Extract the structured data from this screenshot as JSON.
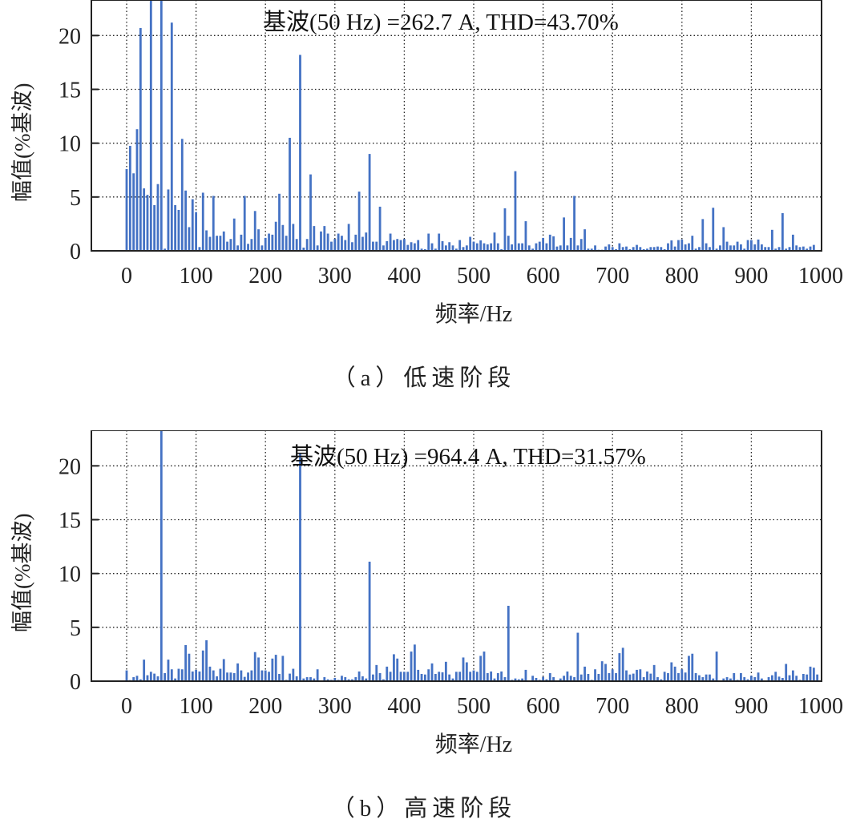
{
  "colors": {
    "bar": "#4472C4",
    "axis": "#222222",
    "grid": "#222222"
  },
  "chart_data": [
    {
      "type": "bar",
      "id": "a",
      "caption": "（a）低速阶段",
      "annotation": "基波(50 Hz) =262.7 A, THD=43.70%",
      "xlabel": "频率/Hz",
      "ylabel": "幅值(%基波)",
      "xlim": [
        -50,
        1000
      ],
      "ylim": [
        0,
        23.3
      ],
      "xticks": [
        0,
        100,
        200,
        300,
        400,
        500,
        600,
        700,
        800,
        900,
        1000
      ],
      "yticks": [
        0,
        5,
        10,
        15,
        20
      ],
      "grid": true,
      "bin_hz": 5,
      "x_start": 0,
      "values": [
        7.6,
        9.75,
        7.2,
        11.3,
        20.7,
        5.8,
        5.2,
        30,
        4.25,
        6.2,
        100,
        0.2,
        5.7,
        21.2,
        4.25,
        3.8,
        10.4,
        5.6,
        2.2,
        4.8,
        3.6,
        0.35,
        5.4,
        1.9,
        1.3,
        5.1,
        1.4,
        1.4,
        1.8,
        0.85,
        1.1,
        3.0,
        0.5,
        1.5,
        5.1,
        0.65,
        1.1,
        3.7,
        2.0,
        0.5,
        1.2,
        1.6,
        1.5,
        2.7,
        5.3,
        2.4,
        1.4,
        10.5,
        2.5,
        1.1,
        18.2,
        0.3,
        1.1,
        7.1,
        2.3,
        0.5,
        1.8,
        2.3,
        1.6,
        0.85,
        1.1,
        1.6,
        1.4,
        1.0,
        2.5,
        0.8,
        1.5,
        5.5,
        1.3,
        1.7,
        9.0,
        0.85,
        0.85,
        4.1,
        0.5,
        0.9,
        1.6,
        1.0,
        1.1,
        1.0,
        1.1,
        0.55,
        0.8,
        0.7,
        1.0,
        0.2,
        0.15,
        1.6,
        0.7,
        0.2,
        1.6,
        0.9,
        0.5,
        0.8,
        0.5,
        0.2,
        1.0,
        0.35,
        0.5,
        1.3,
        0.85,
        0.7,
        0.97,
        0.7,
        0.6,
        0.7,
        1.7,
        0.7,
        0.15,
        3.95,
        1.4,
        0.6,
        7.4,
        0.7,
        0.7,
        2.75,
        0.5,
        0.2,
        0.7,
        0.85,
        1.2,
        0.7,
        1.5,
        1.35,
        0.4,
        0.5,
        3.1,
        0.5,
        1.2,
        5.1,
        0.5,
        1.1,
        2.0,
        0.2,
        0.2,
        0.5,
        0.1,
        0.1,
        0.4,
        0.6,
        0.35,
        0.15,
        0.7,
        0.35,
        0.4,
        0.15,
        0.35,
        0.55,
        0.35,
        0.15,
        0.2,
        0.35,
        0.35,
        0.4,
        0.35,
        0.15,
        0.7,
        0.97,
        0.4,
        1.0,
        1.05,
        0.6,
        0.7,
        1.4,
        0.2,
        0.35,
        2.95,
        0.7,
        0.35,
        4.0,
        0.2,
        0.5,
        2.2,
        0.85,
        0.5,
        0.5,
        0.85,
        0.6,
        0.2,
        1.0,
        1.0,
        0.6,
        1.05,
        0.6,
        0.35,
        0.35,
        1.95,
        0.2,
        0.35,
        3.5,
        0.2,
        0.35,
        1.5,
        0.5,
        0.35,
        0.4,
        0.2,
        0.4,
        0.55
      ]
    },
    {
      "type": "bar",
      "id": "b",
      "caption": "（b）高速阶段",
      "annotation": "基波(50 Hz) =964.4 A, THD=31.57%",
      "xlabel": "频率/Hz",
      "ylabel": "幅值(%基波)",
      "xlim": [
        -50,
        1000
      ],
      "ylim": [
        0,
        23.3
      ],
      "xticks": [
        0,
        100,
        200,
        300,
        400,
        500,
        600,
        700,
        800,
        900,
        1000
      ],
      "yticks": [
        0,
        5,
        10,
        15,
        20
      ],
      "grid": true,
      "bin_hz": 5,
      "x_start": 0,
      "values": [
        1.0,
        0.1,
        0.37,
        0.5,
        0.17,
        2.0,
        0.55,
        0.87,
        0.7,
        0.45,
        100,
        0.75,
        2.0,
        1.1,
        0.25,
        1.15,
        1.1,
        3.35,
        2.55,
        0.9,
        1.05,
        0.9,
        2.85,
        3.8,
        1.35,
        1.0,
        0.45,
        1.15,
        2.05,
        0.8,
        0.8,
        0.75,
        1.65,
        1.0,
        0.4,
        0.8,
        1.0,
        2.7,
        2.2,
        1.0,
        1.0,
        0.87,
        2.1,
        2.45,
        0.67,
        2.35,
        0.12,
        0.7,
        1.15,
        0.45,
        21.2,
        0.25,
        0.37,
        0.37,
        0.25,
        1.1,
        0.07,
        0.37,
        0.17,
        0.12,
        0.3,
        0.12,
        0.5,
        0.37,
        0.17,
        0.17,
        0.37,
        0.9,
        0.45,
        0.25,
        11.1,
        0.62,
        1.5,
        0.75,
        0.17,
        1.35,
        0.87,
        2.5,
        2.1,
        0.87,
        0.87,
        0.87,
        2.75,
        3.4,
        1.05,
        0.67,
        0.62,
        1.1,
        1.65,
        0.67,
        0.87,
        0.82,
        1.8,
        0.62,
        0.25,
        0.87,
        0.87,
        2.2,
        1.75,
        0.87,
        1.0,
        0.87,
        2.35,
        2.75,
        0.75,
        0.9,
        0.25,
        0.75,
        0.9,
        0.37,
        7.0,
        0.12,
        0.25,
        0.17,
        0.25,
        1.05,
        0.07,
        0.5,
        0.3,
        0.12,
        0.4,
        0.17,
        0.75,
        0.37,
        0.07,
        0.25,
        0.5,
        0.9,
        0.5,
        0.37,
        4.5,
        0.62,
        1.35,
        0.67,
        0.12,
        1.1,
        0.67,
        1.85,
        1.6,
        0.75,
        1.1,
        0.75,
        2.6,
        3.1,
        1.0,
        0.62,
        0.7,
        1.05,
        1.1,
        0.37,
        0.9,
        0.7,
        1.5,
        0.37,
        0.17,
        0.87,
        0.75,
        1.75,
        1.35,
        0.75,
        1.1,
        0.8,
        2.35,
        2.55,
        0.75,
        0.55,
        0.37,
        0.62,
        0.62,
        0.25,
        2.75,
        0.07,
        0.25,
        0.37,
        0.25,
        0.75,
        0.12,
        0.75,
        0.37,
        0.17,
        0.5,
        0.37,
        0.8,
        0.25,
        0.07,
        0.37,
        0.55,
        0.87,
        0.42,
        0.3,
        1.6,
        0.55,
        1.0,
        0.5,
        0.12,
        0.67,
        0.62,
        1.35,
        1.25,
        0.62
      ]
    }
  ]
}
